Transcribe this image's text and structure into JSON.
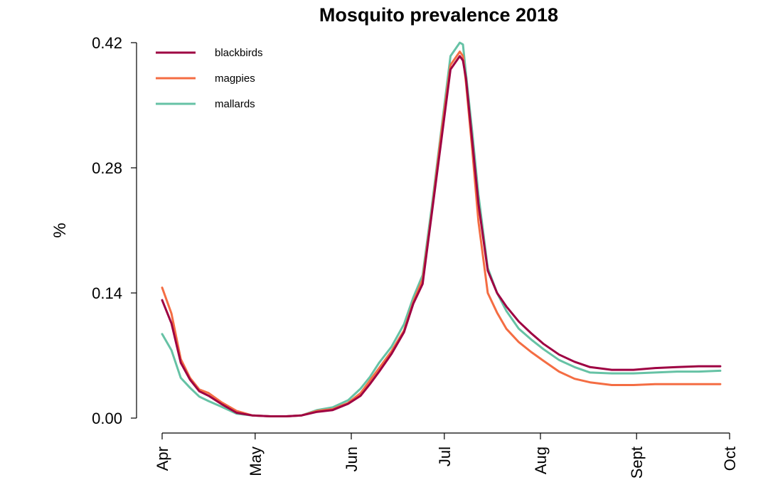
{
  "chart_data": {
    "type": "line",
    "title": "Mosquito prevalence 2018",
    "xlabel": "",
    "ylabel": "%",
    "x_ticks": [
      "Apr",
      "May",
      "Jun",
      "Jul",
      "Aug",
      "Sept",
      "Oct"
    ],
    "y_ticks": [
      "0.00",
      "0.14",
      "0.28",
      "0.42"
    ],
    "ylim": [
      0,
      0.42
    ],
    "xlim_days": [
      0,
      183
    ],
    "legend_position": "top-left",
    "grid": false,
    "x": [
      "Apr 1",
      "Apr 4",
      "Apr 7",
      "Apr 10",
      "Apr 13",
      "Apr 16",
      "Apr 20",
      "Apr 25",
      "Apr 30",
      "May 6",
      "May 11",
      "May 16",
      "May 21",
      "May 26",
      "May 31",
      "Jun 4",
      "Jun 7",
      "Jun 10",
      "Jun 14",
      "Jun 18",
      "Jun 21",
      "Jun 24",
      "Jun 27",
      "Jun 30",
      "Jul 3",
      "Jul 6",
      "Jul 7",
      "Jul 8",
      "Jul 10",
      "Jul 12",
      "Jul 15",
      "Jul 18",
      "Jul 21",
      "Jul 25",
      "Jul 29",
      "Aug 2",
      "Aug 7",
      "Aug 12",
      "Aug 17",
      "Aug 24",
      "Aug 31",
      "Sep 7",
      "Sep 14",
      "Sep 21",
      "Sep 28"
    ],
    "series": [
      {
        "name": "blackbirds",
        "color": "#9e0142",
        "values": [
          0.132,
          0.106,
          0.062,
          0.043,
          0.03,
          0.025,
          0.016,
          0.006,
          0.003,
          0.002,
          0.002,
          0.003,
          0.007,
          0.009,
          0.016,
          0.025,
          0.038,
          0.052,
          0.072,
          0.096,
          0.128,
          0.15,
          0.23,
          0.31,
          0.39,
          0.405,
          0.4,
          0.38,
          0.31,
          0.24,
          0.165,
          0.14,
          0.125,
          0.108,
          0.095,
          0.083,
          0.071,
          0.063,
          0.057,
          0.054,
          0.054,
          0.056,
          0.057,
          0.058,
          0.058
        ]
      },
      {
        "name": "magpies",
        "color": "#f46d43",
        "values": [
          0.146,
          0.117,
          0.066,
          0.045,
          0.032,
          0.028,
          0.018,
          0.008,
          0.003,
          0.002,
          0.002,
          0.003,
          0.008,
          0.01,
          0.017,
          0.028,
          0.042,
          0.056,
          0.075,
          0.098,
          0.13,
          0.155,
          0.232,
          0.318,
          0.395,
          0.41,
          0.405,
          0.375,
          0.3,
          0.22,
          0.14,
          0.118,
          0.1,
          0.085,
          0.074,
          0.064,
          0.052,
          0.044,
          0.04,
          0.037,
          0.037,
          0.038,
          0.038,
          0.038,
          0.038
        ]
      },
      {
        "name": "mallards",
        "color": "#66c2a5",
        "values": [
          0.094,
          0.076,
          0.045,
          0.034,
          0.024,
          0.019,
          0.013,
          0.005,
          0.003,
          0.002,
          0.002,
          0.003,
          0.009,
          0.012,
          0.02,
          0.033,
          0.046,
          0.062,
          0.08,
          0.105,
          0.135,
          0.16,
          0.238,
          0.322,
          0.405,
          0.42,
          0.418,
          0.385,
          0.32,
          0.25,
          0.168,
          0.14,
          0.12,
          0.1,
          0.088,
          0.077,
          0.065,
          0.057,
          0.051,
          0.05,
          0.05,
          0.051,
          0.052,
          0.052,
          0.053
        ]
      }
    ]
  }
}
